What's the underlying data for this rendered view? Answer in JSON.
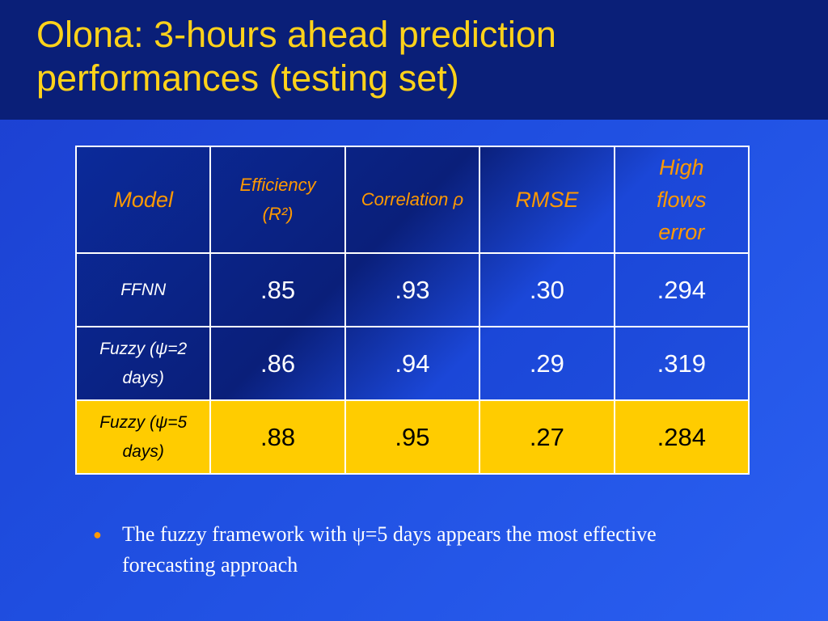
{
  "title": "Olona: 3-hours ahead prediction performances (testing set)",
  "table": {
    "header": [
      "Model",
      "Efficiency (R²)",
      "Correlation ρ",
      "RMSE",
      "High flows error"
    ],
    "rows": [
      [
        "FFNN",
        ".85",
        ".93",
        ".30",
        ".294"
      ],
      [
        "Fuzzy (ψ=2 days)",
        ".86",
        ".94",
        ".29",
        ".319"
      ],
      [
        "Fuzzy (ψ=5 days)",
        ".88",
        ".95",
        ".27",
        ".284"
      ]
    ]
  },
  "bullets": [
    "The fuzzy framework with ψ=5 days appears the most effective forecasting approach"
  ]
}
